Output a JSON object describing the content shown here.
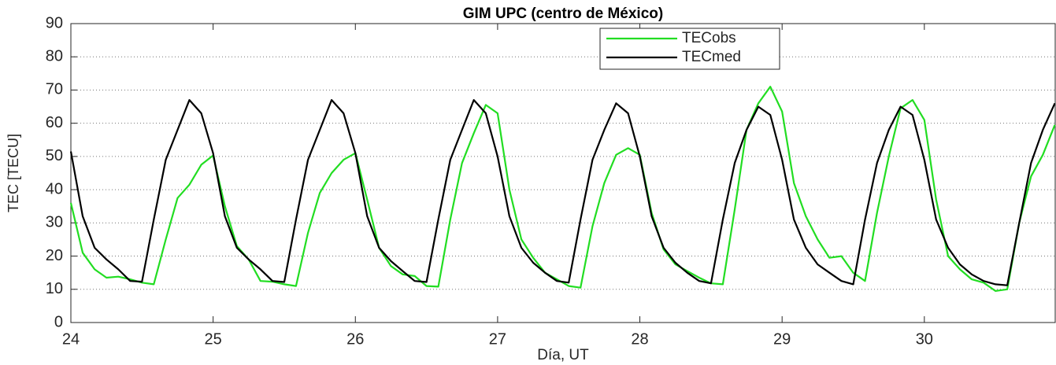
{
  "chart_data": {
    "type": "line",
    "title": "GIM UPC (centro de México)",
    "xlabel": "Día, UT",
    "ylabel": "TEC [TECU]",
    "x": [
      24,
      24.083,
      24.167,
      24.25,
      24.333,
      24.417,
      24.5,
      24.583,
      24.667,
      24.75,
      24.833,
      24.917,
      25,
      25.083,
      25.167,
      25.25,
      25.333,
      25.417,
      25.5,
      25.583,
      25.667,
      25.75,
      25.833,
      25.917,
      26,
      26.083,
      26.167,
      26.25,
      26.333,
      26.417,
      26.5,
      26.583,
      26.667,
      26.75,
      26.833,
      26.917,
      27,
      27.083,
      27.167,
      27.25,
      27.333,
      27.417,
      27.5,
      27.583,
      27.667,
      27.75,
      27.833,
      27.917,
      28,
      28.083,
      28.167,
      28.25,
      28.333,
      28.417,
      28.5,
      28.583,
      28.667,
      28.75,
      28.833,
      28.917,
      29,
      29.083,
      29.167,
      29.25,
      29.333,
      29.417,
      29.5,
      29.583,
      29.667,
      29.75,
      29.833,
      29.917,
      30,
      30.083,
      30.167,
      30.25,
      30.333,
      30.417,
      30.5,
      30.583,
      30.667,
      30.75,
      30.833,
      30.917
    ],
    "series": [
      {
        "name": "TECobs",
        "color": "#22dd22",
        "values": [
          36,
          21,
          16,
          13.5,
          13.8,
          13,
          12,
          11.5,
          25,
          37.5,
          41.5,
          47.5,
          50.3,
          35,
          23,
          19,
          12.5,
          12.3,
          11.5,
          11,
          27,
          39,
          45,
          49,
          51,
          37,
          22.5,
          17,
          14.5,
          14,
          11,
          10.8,
          31,
          48,
          57,
          65.5,
          63,
          40,
          25,
          19.5,
          15,
          13,
          11,
          10.5,
          29,
          42,
          50.5,
          52.5,
          50.5,
          33,
          22,
          17.5,
          15.5,
          13.5,
          11.8,
          11.5,
          34,
          58,
          66,
          71,
          63.5,
          42,
          32,
          25,
          19.5,
          20,
          15,
          12.5,
          33,
          50,
          64.5,
          67,
          61,
          37,
          20,
          16,
          13,
          12,
          9.5,
          10,
          30,
          44,
          50.5,
          59.5
        ]
      },
      {
        "name": "TECmed",
        "color": "#000000",
        "values": [
          51.5,
          32,
          22.5,
          19,
          16,
          12.5,
          12.3,
          31,
          49,
          58,
          67,
          63,
          51,
          32,
          22.5,
          19,
          16,
          12.5,
          12.2,
          31,
          49,
          58,
          67,
          63,
          51,
          32,
          22.5,
          18.5,
          15.5,
          12.5,
          12.2,
          31,
          49,
          58,
          67,
          63,
          50,
          32,
          22.5,
          18,
          15,
          12.5,
          12,
          31,
          49,
          58,
          66,
          63,
          50,
          32,
          22.5,
          18,
          15,
          12.5,
          11.8,
          31,
          48,
          58,
          65,
          62.5,
          49,
          31,
          22.5,
          17.5,
          15,
          12.5,
          11.5,
          31,
          48,
          58,
          65,
          62.5,
          49,
          31,
          22.5,
          17.5,
          14.5,
          12.5,
          11.5,
          11.2,
          30,
          48,
          58,
          66
        ]
      }
    ],
    "xlim": [
      24,
      30.92
    ],
    "ylim": [
      0,
      90
    ],
    "xticks": [
      24,
      25,
      26,
      27,
      28,
      29,
      30
    ],
    "yticks": [
      0,
      10,
      20,
      30,
      40,
      50,
      60,
      70,
      80,
      90
    ],
    "grid": true
  }
}
